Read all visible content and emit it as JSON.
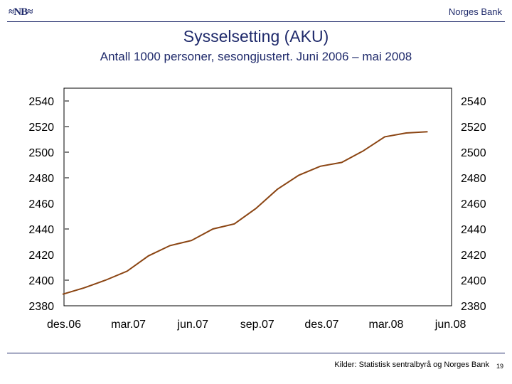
{
  "header": {
    "logo_text": "NB",
    "bank_name": "Norges Bank"
  },
  "chart_data": {
    "type": "line",
    "title": "Sysselsetting (AKU)",
    "subtitle": "Antall 1000 personer, sesongjustert. Juni 2006 – mai 2008",
    "xlabel": "",
    "ylabel": "",
    "x_tick_labels": [
      "des.06",
      "mar.07",
      "jun.07",
      "sep.07",
      "des.07",
      "mar.08",
      "jun.08"
    ],
    "y_ticks": [
      2380,
      2400,
      2420,
      2440,
      2460,
      2480,
      2500,
      2520,
      2540
    ],
    "ylim": [
      2380,
      2540
    ],
    "grid": false,
    "line_color": "#8b4513",
    "series": [
      {
        "x": [
          "des.06",
          "jan.07",
          "feb.07",
          "mar.07",
          "apr.07",
          "mai.07",
          "jun.07",
          "jul.07",
          "aug.07",
          "sep.07",
          "okt.07",
          "nov.07",
          "des.07",
          "jan.08",
          "feb.08",
          "mar.08",
          "apr.08",
          "mai.08"
        ],
        "values": [
          2389,
          2394,
          2400,
          2407,
          2419,
          2427,
          2431,
          2440,
          2444,
          2456,
          2471,
          2482,
          2489,
          2492,
          2501,
          2512,
          2515,
          2516
        ]
      }
    ]
  },
  "footer": {
    "source": "Kilder: Statistisk sentralbyrå og Norges Bank",
    "page_number": "19"
  }
}
